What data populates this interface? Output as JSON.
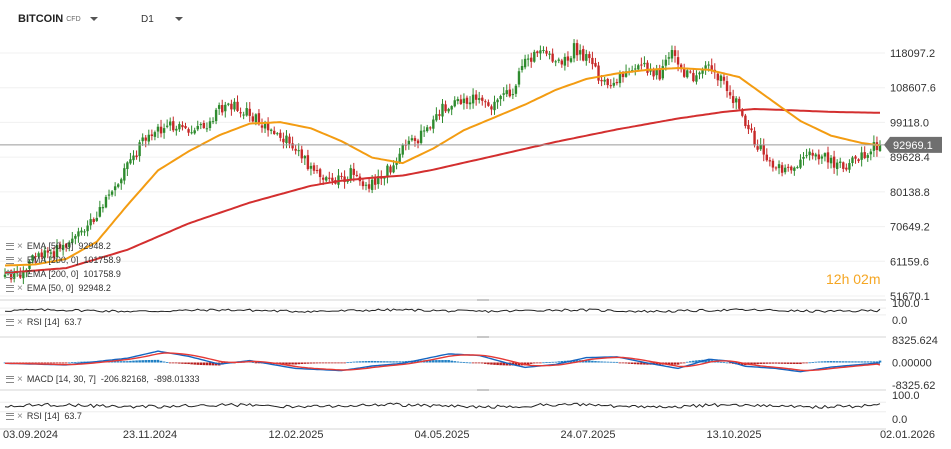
{
  "header": {
    "symbol": "BITCOIN",
    "symbol_type": "CFD",
    "timeframe": "D1"
  },
  "legends": [
    {
      "label": "EMA [50, 0]",
      "value": "92948.2"
    },
    {
      "label": "EMA [200, 0]",
      "value": "101758.9"
    },
    {
      "label": "EMA [200, 0]",
      "value": "101758.9"
    },
    {
      "label": "EMA [50, 0]",
      "value": "92948.2"
    }
  ],
  "rsi1": {
    "label": "RSI [14]",
    "value": "63.7"
  },
  "macd": {
    "label": "MACD [14, 30, 7]",
    "value1": "-206.82168,",
    "value2": "-898.01333"
  },
  "rsi2": {
    "label": "RSI [14]",
    "value": "63.7"
  },
  "countdown": "12h 02m",
  "colors": {
    "bull": "#2e8b2e",
    "bear": "#c62828",
    "ema50": "#f39c12",
    "ema200": "#d32f2f",
    "rsi": "#222222",
    "macd_line": "#1565c0",
    "signal_line": "#e53935",
    "hist_pos": "#1f7fc4",
    "hist_neg": "#b71c1c",
    "last_price_bg": "#6f6f6f"
  },
  "chart_data": {
    "type": "candlestick",
    "price_axis": {
      "ticks": [
        "118097.2",
        "108607.6",
        "99118.0",
        "89628.4",
        "80138.8",
        "70649.2",
        "61159.6",
        "51670.1"
      ],
      "range": [
        51670.1,
        124000
      ]
    },
    "last_price": "92969.1",
    "x_ticks": [
      "03.09.2024",
      "23.11.2024",
      "12.02.2025",
      "04.05.2025",
      "24.07.2025",
      "13.10.2025",
      "02.01.2026"
    ],
    "price_anchors": [
      [
        0,
        56500
      ],
      [
        4,
        57500
      ],
      [
        8,
        60500
      ],
      [
        10,
        62000
      ],
      [
        14,
        63000
      ],
      [
        18,
        64500
      ],
      [
        22,
        66500
      ],
      [
        26,
        69500
      ],
      [
        30,
        74000
      ],
      [
        34,
        79000
      ],
      [
        38,
        85000
      ],
      [
        42,
        89500
      ],
      [
        46,
        95500
      ],
      [
        50,
        96500
      ],
      [
        54,
        98500
      ],
      [
        58,
        97000
      ],
      [
        62,
        96000
      ],
      [
        66,
        98500
      ],
      [
        70,
        103000
      ],
      [
        74,
        104000
      ],
      [
        78,
        102000
      ],
      [
        82,
        100000
      ],
      [
        86,
        97500
      ],
      [
        90,
        96000
      ],
      [
        94,
        92000
      ],
      [
        98,
        88500
      ],
      [
        102,
        84500
      ],
      [
        106,
        84000
      ],
      [
        110,
        83500
      ],
      [
        114,
        86000
      ],
      [
        118,
        82000
      ],
      [
        122,
        83500
      ],
      [
        126,
        86500
      ],
      [
        130,
        93000
      ],
      [
        134,
        94500
      ],
      [
        138,
        96500
      ],
      [
        142,
        102500
      ],
      [
        146,
        105000
      ],
      [
        150,
        104500
      ],
      [
        154,
        106500
      ],
      [
        158,
        103500
      ],
      [
        162,
        106500
      ],
      [
        166,
        108000
      ],
      [
        170,
        116000
      ],
      [
        174,
        118500
      ],
      [
        178,
        117500
      ],
      [
        182,
        114500
      ],
      [
        186,
        119500
      ],
      [
        190,
        117000
      ],
      [
        194,
        111500
      ],
      [
        198,
        110500
      ],
      [
        202,
        111500
      ],
      [
        206,
        115000
      ],
      [
        210,
        114000
      ],
      [
        214,
        111500
      ],
      [
        218,
        120500
      ],
      [
        222,
        112500
      ],
      [
        226,
        110500
      ],
      [
        230,
        114500
      ],
      [
        234,
        110500
      ],
      [
        238,
        106000
      ],
      [
        242,
        98500
      ],
      [
        246,
        93000
      ],
      [
        250,
        87500
      ],
      [
        254,
        86000
      ],
      [
        258,
        88000
      ],
      [
        262,
        89500
      ],
      [
        266,
        90500
      ],
      [
        270,
        88500
      ],
      [
        274,
        87000
      ],
      [
        278,
        89500
      ],
      [
        282,
        91000
      ],
      [
        285,
        93000
      ]
    ],
    "ema50_anchors": [
      [
        0,
        60000
      ],
      [
        10,
        60300
      ],
      [
        20,
        61800
      ],
      [
        30,
        66500
      ],
      [
        40,
        76500
      ],
      [
        50,
        86000
      ],
      [
        60,
        91200
      ],
      [
        70,
        95600
      ],
      [
        80,
        98800
      ],
      [
        90,
        99200
      ],
      [
        100,
        97500
      ],
      [
        110,
        94000
      ],
      [
        120,
        89500
      ],
      [
        130,
        88000
      ],
      [
        140,
        92000
      ],
      [
        150,
        97000
      ],
      [
        160,
        100500
      ],
      [
        170,
        104000
      ],
      [
        180,
        108000
      ],
      [
        190,
        111000
      ],
      [
        200,
        112500
      ],
      [
        210,
        113500
      ],
      [
        220,
        114000
      ],
      [
        230,
        113500
      ],
      [
        240,
        111500
      ],
      [
        250,
        105500
      ],
      [
        260,
        99500
      ],
      [
        270,
        95500
      ],
      [
        280,
        93500
      ],
      [
        285,
        92948
      ]
    ],
    "ema200_anchors": [
      [
        0,
        58000
      ],
      [
        20,
        59300
      ],
      [
        40,
        64300
      ],
      [
        60,
        71500
      ],
      [
        80,
        77200
      ],
      [
        100,
        81800
      ],
      [
        110,
        83200
      ],
      [
        120,
        84000
      ],
      [
        130,
        84600
      ],
      [
        140,
        86200
      ],
      [
        160,
        90000
      ],
      [
        180,
        93800
      ],
      [
        200,
        97200
      ],
      [
        220,
        100200
      ],
      [
        235,
        102000
      ],
      [
        245,
        102800
      ],
      [
        255,
        102500
      ],
      [
        270,
        102000
      ],
      [
        285,
        101759
      ]
    ],
    "rsi_panel": {
      "ticks": [
        "100.0",
        "0.0"
      ],
      "range": [
        0,
        100
      ],
      "last": 63.7
    },
    "macd_panel": {
      "ticks": [
        "8325.624",
        "0.00000",
        "-8325.62"
      ],
      "range": [
        -8325.62,
        8325.624
      ],
      "macd_last": -206.82168,
      "signal_last": -898.01333
    }
  }
}
